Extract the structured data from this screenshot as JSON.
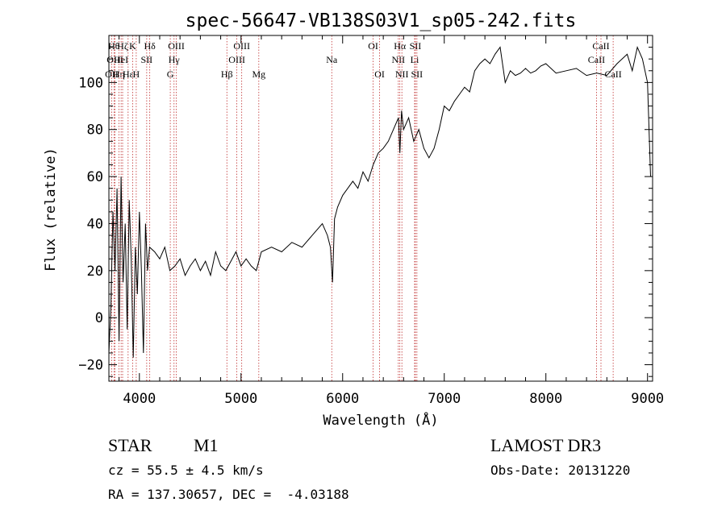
{
  "chart_data": {
    "type": "line",
    "title": "spec-56647-VB138S03V1_sp05-242.fits",
    "xlabel": "Wavelength (Å)",
    "ylabel": "Flux (relative)",
    "xlim": [
      3700,
      9050
    ],
    "ylim": [
      -27,
      120
    ],
    "xticks": [
      4000,
      5000,
      6000,
      7000,
      8000,
      9000
    ],
    "yticks": [
      -20,
      0,
      20,
      40,
      60,
      80,
      100
    ],
    "grid": false,
    "line_color": "#000000",
    "series": [
      {
        "x": [
          3700,
          3720,
          3740,
          3760,
          3780,
          3800,
          3820,
          3840,
          3860,
          3880,
          3900,
          3920,
          3940,
          3960,
          3980,
          4000,
          4020,
          4040,
          4060,
          4080,
          4100,
          4150,
          4200,
          4250,
          4300,
          4350,
          4400,
          4450,
          4500,
          4550,
          4600,
          4650,
          4700,
          4750,
          4800,
          4850,
          4900,
          4950,
          5000,
          5050,
          5100,
          5150,
          5200,
          5300,
          5400,
          5500,
          5600,
          5700,
          5800,
          5850,
          5880,
          5900,
          5920,
          5950,
          6000,
          6050,
          6100,
          6150,
          6200,
          6250,
          6300,
          6350,
          6400,
          6450,
          6500,
          6550,
          6563,
          6580,
          6600,
          6650,
          6700,
          6750,
          6800,
          6850,
          6900,
          6950,
          7000,
          7050,
          7100,
          7150,
          7200,
          7250,
          7300,
          7350,
          7400,
          7450,
          7500,
          7550,
          7600,
          7650,
          7700,
          7750,
          7800,
          7850,
          7900,
          7950,
          8000,
          8100,
          8200,
          8300,
          8400,
          8500,
          8600,
          8700,
          8800,
          8850,
          8900,
          8950,
          9000,
          9030
        ],
        "y": [
          -15,
          5,
          45,
          20,
          55,
          -10,
          60,
          15,
          40,
          -5,
          50,
          25,
          -17,
          30,
          10,
          45,
          20,
          -15,
          40,
          20,
          30,
          28,
          25,
          30,
          20,
          22,
          25,
          18,
          22,
          25,
          20,
          24,
          18,
          28,
          22,
          20,
          24,
          28,
          22,
          25,
          22,
          20,
          28,
          30,
          28,
          32,
          30,
          35,
          40,
          35,
          30,
          15,
          42,
          47,
          52,
          55,
          58,
          55,
          62,
          58,
          65,
          70,
          72,
          75,
          80,
          85,
          70,
          88,
          80,
          85,
          75,
          80,
          72,
          68,
          72,
          80,
          90,
          88,
          92,
          95,
          98,
          96,
          105,
          108,
          110,
          108,
          112,
          115,
          100,
          105,
          103,
          104,
          106,
          104,
          105,
          107,
          108,
          104,
          105,
          106,
          103,
          104,
          103,
          108,
          112,
          105,
          115,
          110,
          100,
          60
        ]
      }
    ],
    "annotations": {
      "line_color": "#c03030",
      "lines": [
        {
          "x": 3727,
          "label": "OII",
          "row": 3
        },
        {
          "x": 3750,
          "label": "Hθ",
          "row": 1
        },
        {
          "x": 3760,
          "label": "OIII",
          "row": 2
        },
        {
          "x": 3798,
          "label": "Hη",
          "row": 3
        },
        {
          "x": 3820,
          "label": "HeI",
          "row": 2
        },
        {
          "x": 3835,
          "label": "Hζ",
          "row": 1
        },
        {
          "x": 3889,
          "label": "Hε",
          "row": 3
        },
        {
          "x": 3934,
          "label": "K",
          "row": 1
        },
        {
          "x": 3969,
          "label": "H",
          "row": 3
        },
        {
          "x": 4072,
          "label": "SII",
          "row": 2
        },
        {
          "x": 4102,
          "label": "Hδ",
          "row": 1
        },
        {
          "x": 4304,
          "label": "G",
          "row": 3
        },
        {
          "x": 4341,
          "label": "Hγ",
          "row": 2
        },
        {
          "x": 4363,
          "label": "OIII",
          "row": 1
        },
        {
          "x": 4861,
          "label": "Hβ",
          "row": 3
        },
        {
          "x": 4959,
          "label": "OIII",
          "row": 2
        },
        {
          "x": 5007,
          "label": "OIII",
          "row": 1
        },
        {
          "x": 5175,
          "label": "Mg",
          "row": 3
        },
        {
          "x": 5893,
          "label": "Na",
          "row": 2
        },
        {
          "x": 6300,
          "label": "OI",
          "row": 1
        },
        {
          "x": 6364,
          "label": "OI",
          "row": 3
        },
        {
          "x": 6548,
          "label": "NII",
          "row": 2
        },
        {
          "x": 6563,
          "label": "Hα",
          "row": 1
        },
        {
          "x": 6583,
          "label": "NII",
          "row": 3
        },
        {
          "x": 6708,
          "label": "Li",
          "row": 2
        },
        {
          "x": 6716,
          "label": "SII",
          "row": 1
        },
        {
          "x": 6731,
          "label": "SII",
          "row": 3
        },
        {
          "x": 8498,
          "label": "CaII",
          "row": 2
        },
        {
          "x": 8542,
          "label": "CaII",
          "row": 1
        },
        {
          "x": 8662,
          "label": "CaII",
          "row": 3
        }
      ]
    }
  },
  "info": {
    "object_type": "STAR",
    "subclass": "M1",
    "survey": "LAMOST DR3",
    "cz": "cz = 55.5 ± 4.5 km/s",
    "obs_date": "Obs-Date: 20131220",
    "radec": "RA = 137.30657, DEC =  -4.03188"
  }
}
